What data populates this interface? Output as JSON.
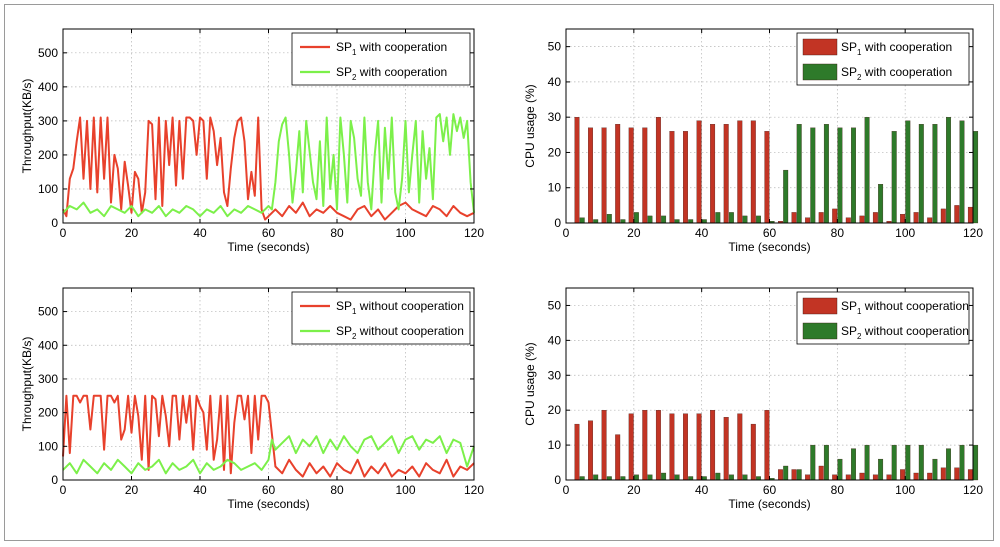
{
  "chart_data": [
    {
      "type": "line",
      "xlabel": "Time (seconds)",
      "ylabel": "Throughput(KB/s)",
      "xlim": [
        0,
        120
      ],
      "ylim": [
        0,
        570
      ],
      "xticks": [
        0,
        20,
        40,
        60,
        80,
        100,
        120
      ],
      "yticks": [
        0,
        100,
        200,
        300,
        400,
        500
      ],
      "grid": true,
      "legend_position": "top-right",
      "series": [
        {
          "name": "SP1 with cooperation",
          "label_base": "SP",
          "label_sub": "1",
          "label_rest": " with cooperation",
          "color": "#e8412c",
          "x": [
            0,
            1,
            2,
            3,
            4,
            5,
            6,
            7,
            8,
            9,
            10,
            11,
            12,
            13,
            14,
            15,
            16,
            17,
            18,
            19,
            20,
            21,
            22,
            23,
            24,
            25,
            26,
            27,
            28,
            29,
            30,
            31,
            32,
            33,
            34,
            35,
            36,
            37,
            38,
            39,
            40,
            41,
            42,
            43,
            44,
            45,
            46,
            47,
            48,
            49,
            50,
            51,
            52,
            53,
            54,
            55,
            56,
            57,
            58,
            59,
            60,
            62,
            64,
            66,
            68,
            70,
            72,
            74,
            76,
            78,
            80,
            82,
            84,
            86,
            88,
            90,
            92,
            94,
            96,
            98,
            100,
            102,
            104,
            106,
            108,
            110,
            112,
            114,
            116,
            118,
            120
          ],
          "y": [
            40,
            20,
            130,
            160,
            240,
            310,
            130,
            300,
            100,
            310,
            90,
            310,
            130,
            310,
            60,
            200,
            160,
            40,
            180,
            110,
            30,
            150,
            130,
            30,
            90,
            300,
            290,
            70,
            310,
            50,
            300,
            170,
            310,
            110,
            300,
            130,
            310,
            310,
            300,
            200,
            310,
            300,
            130,
            310,
            270,
            170,
            250,
            90,
            50,
            160,
            250,
            300,
            310,
            240,
            70,
            150,
            80,
            310,
            40,
            10,
            20,
            40,
            20,
            50,
            30,
            60,
            20,
            40,
            30,
            50,
            30,
            20,
            10,
            40,
            50,
            20,
            40,
            10,
            30,
            50,
            60,
            40,
            30,
            20,
            50,
            40,
            20,
            50,
            30,
            20,
            30
          ]
        },
        {
          "name": "SP2 with cooperation",
          "label_base": "SP",
          "label_sub": "2",
          "label_rest": " with cooperation",
          "color": "#7cf04a",
          "x": [
            0,
            2,
            4,
            6,
            8,
            10,
            12,
            14,
            16,
            18,
            20,
            22,
            24,
            26,
            28,
            30,
            32,
            34,
            36,
            38,
            40,
            42,
            44,
            46,
            48,
            50,
            52,
            54,
            56,
            58,
            60,
            61,
            62,
            63,
            64,
            65,
            66,
            67,
            68,
            69,
            70,
            71,
            72,
            73,
            74,
            75,
            76,
            77,
            78,
            79,
            80,
            81,
            82,
            83,
            84,
            85,
            86,
            87,
            88,
            89,
            90,
            91,
            92,
            93,
            94,
            95,
            96,
            97,
            98,
            99,
            100,
            101,
            102,
            103,
            104,
            105,
            106,
            107,
            108,
            109,
            110,
            111,
            112,
            113,
            114,
            115,
            116,
            117,
            118,
            119,
            120
          ],
          "y": [
            30,
            50,
            40,
            60,
            30,
            40,
            20,
            50,
            40,
            30,
            50,
            20,
            40,
            30,
            50,
            20,
            40,
            30,
            50,
            40,
            20,
            40,
            30,
            50,
            20,
            40,
            30,
            50,
            40,
            30,
            50,
            40,
            120,
            240,
            290,
            310,
            200,
            60,
            150,
            270,
            90,
            300,
            210,
            120,
            70,
            240,
            50,
            310,
            100,
            200,
            40,
            310,
            200,
            60,
            300,
            250,
            130,
            80,
            310,
            120,
            40,
            200,
            300,
            60,
            280,
            130,
            310,
            90,
            40,
            130,
            300,
            90,
            200,
            300,
            60,
            270,
            130,
            220,
            70,
            310,
            320,
            240,
            310,
            200,
            320,
            270,
            310,
            250,
            300,
            120,
            30
          ]
        }
      ]
    },
    {
      "type": "bar",
      "xlabel": "Time (seconds)",
      "ylabel": "CPU usage (%)",
      "xlim": [
        0,
        120
      ],
      "ylim": [
        0,
        55
      ],
      "xticks": [
        0,
        20,
        40,
        60,
        80,
        100,
        120
      ],
      "yticks": [
        0,
        10,
        20,
        30,
        40,
        50
      ],
      "grid": true,
      "legend_position": "top-right",
      "x": [
        4,
        8,
        12,
        16,
        20,
        24,
        28,
        32,
        36,
        40,
        44,
        48,
        52,
        56,
        60,
        64,
        68,
        72,
        76,
        80,
        84,
        88,
        92,
        96,
        100,
        104,
        108,
        112,
        116,
        120
      ],
      "series": [
        {
          "name": "SP1 with cooperation",
          "label_base": "SP",
          "label_sub": "1",
          "label_rest": " with cooperation",
          "color": "#c23424",
          "values": [
            30,
            27,
            27,
            28,
            27,
            27,
            30,
            26,
            26,
            29,
            28,
            28,
            29,
            29,
            26,
            0.5,
            3,
            1.5,
            3,
            4,
            1.5,
            2,
            3,
            0.5,
            2.5,
            3,
            1.5,
            4,
            5,
            4.5
          ]
        },
        {
          "name": "SP2 with cooperation",
          "label_base": "SP",
          "label_sub": "2",
          "label_rest": " with cooperation",
          "color": "#2e7a2a",
          "values": [
            1.5,
            1,
            2.5,
            1,
            3,
            2,
            2,
            1,
            1,
            1,
            3,
            3,
            2,
            2,
            0.5,
            15,
            28,
            27,
            28,
            27,
            27,
            30,
            11,
            26,
            29,
            28,
            28,
            30,
            29,
            26
          ]
        }
      ]
    },
    {
      "type": "line",
      "xlabel": "Time (seconds)",
      "ylabel": "Throughput(KB/s)",
      "xlim": [
        0,
        120
      ],
      "ylim": [
        0,
        570
      ],
      "xticks": [
        0,
        20,
        40,
        60,
        80,
        100,
        120
      ],
      "yticks": [
        0,
        100,
        200,
        300,
        400,
        500
      ],
      "grid": true,
      "legend_position": "top-right",
      "series": [
        {
          "name": "SP1 without cooperation",
          "label_base": "SP",
          "label_sub": "1",
          "label_rest": " without cooperation",
          "color": "#e8412c",
          "x": [
            0,
            1,
            2,
            3,
            4,
            5,
            6,
            7,
            8,
            9,
            10,
            11,
            12,
            13,
            14,
            15,
            16,
            17,
            18,
            19,
            20,
            21,
            22,
            23,
            24,
            25,
            26,
            27,
            28,
            29,
            30,
            31,
            32,
            33,
            34,
            35,
            36,
            37,
            38,
            39,
            40,
            41,
            42,
            43,
            44,
            45,
            46,
            47,
            48,
            49,
            50,
            51,
            52,
            53,
            54,
            55,
            56,
            57,
            58,
            59,
            60,
            62,
            64,
            66,
            68,
            70,
            72,
            74,
            76,
            78,
            80,
            82,
            84,
            86,
            88,
            90,
            92,
            94,
            96,
            98,
            100,
            102,
            104,
            106,
            108,
            110,
            112,
            114,
            116,
            118,
            120
          ],
          "y": [
            70,
            250,
            80,
            250,
            250,
            230,
            250,
            250,
            150,
            250,
            250,
            250,
            90,
            250,
            250,
            230,
            250,
            120,
            150,
            250,
            140,
            250,
            190,
            60,
            250,
            30,
            250,
            240,
            130,
            250,
            190,
            100,
            250,
            250,
            120,
            250,
            170,
            250,
            90,
            250,
            220,
            200,
            90,
            250,
            60,
            120,
            250,
            30,
            250,
            20,
            170,
            250,
            250,
            180,
            250,
            80,
            250,
            120,
            250,
            250,
            230,
            40,
            20,
            60,
            30,
            10,
            50,
            20,
            40,
            10,
            50,
            30,
            20,
            60,
            10,
            40,
            20,
            50,
            10,
            30,
            20,
            40,
            10,
            50,
            30,
            20,
            60,
            10,
            40,
            30,
            50
          ]
        },
        {
          "name": "SP2 without cooperation",
          "label_base": "SP",
          "label_sub": "2",
          "label_rest": " without cooperation",
          "color": "#7cf04a",
          "x": [
            0,
            2,
            4,
            6,
            8,
            10,
            12,
            14,
            16,
            18,
            20,
            22,
            24,
            26,
            28,
            30,
            32,
            34,
            36,
            38,
            40,
            42,
            44,
            46,
            48,
            50,
            52,
            54,
            56,
            58,
            60,
            61,
            62,
            64,
            66,
            68,
            70,
            72,
            74,
            76,
            78,
            80,
            82,
            84,
            86,
            88,
            90,
            92,
            94,
            96,
            98,
            100,
            102,
            104,
            106,
            108,
            110,
            112,
            114,
            116,
            118,
            120
          ],
          "y": [
            30,
            50,
            20,
            60,
            40,
            20,
            50,
            30,
            60,
            40,
            20,
            50,
            30,
            40,
            60,
            20,
            50,
            30,
            40,
            60,
            20,
            50,
            30,
            40,
            60,
            50,
            30,
            40,
            50,
            30,
            60,
            120,
            90,
            110,
            130,
            80,
            120,
            100,
            130,
            80,
            120,
            90,
            130,
            100,
            80,
            120,
            130,
            90,
            110,
            130,
            80,
            120,
            130,
            90,
            120,
            110,
            130,
            80,
            120,
            110,
            40,
            100
          ]
        }
      ]
    },
    {
      "type": "bar",
      "xlabel": "Time (seconds)",
      "ylabel": "CPU usage (%)",
      "xlim": [
        0,
        120
      ],
      "ylim": [
        0,
        55
      ],
      "xticks": [
        0,
        20,
        40,
        60,
        80,
        100,
        120
      ],
      "yticks": [
        0,
        10,
        20,
        30,
        40,
        50
      ],
      "grid": true,
      "legend_position": "top-right",
      "x": [
        4,
        8,
        12,
        16,
        20,
        24,
        28,
        32,
        36,
        40,
        44,
        48,
        52,
        56,
        60,
        64,
        68,
        72,
        76,
        80,
        84,
        88,
        92,
        96,
        100,
        104,
        108,
        112,
        116,
        120
      ],
      "series": [
        {
          "name": "SP1 without cooperation",
          "label_base": "SP",
          "label_sub": "1",
          "label_rest": " without cooperation",
          "color": "#c23424",
          "values": [
            16,
            17,
            20,
            13,
            19,
            20,
            20,
            19,
            19,
            19,
            20,
            18,
            19,
            16,
            20,
            3,
            3,
            1.5,
            4,
            1.5,
            1.5,
            2,
            1.5,
            1.5,
            3,
            2,
            2,
            3.5,
            3.5,
            3
          ]
        },
        {
          "name": "SP2 without cooperation",
          "label_base": "SP",
          "label_sub": "2",
          "label_rest": " without cooperation",
          "color": "#2e7a2a",
          "values": [
            1,
            1.5,
            1,
            1,
            1.5,
            1.5,
            2,
            1.5,
            1,
            1,
            2,
            1.5,
            1.5,
            1,
            0.5,
            4,
            3,
            10,
            10,
            6,
            9,
            10,
            6,
            10,
            10,
            10,
            6,
            9,
            10,
            10
          ]
        }
      ]
    }
  ]
}
